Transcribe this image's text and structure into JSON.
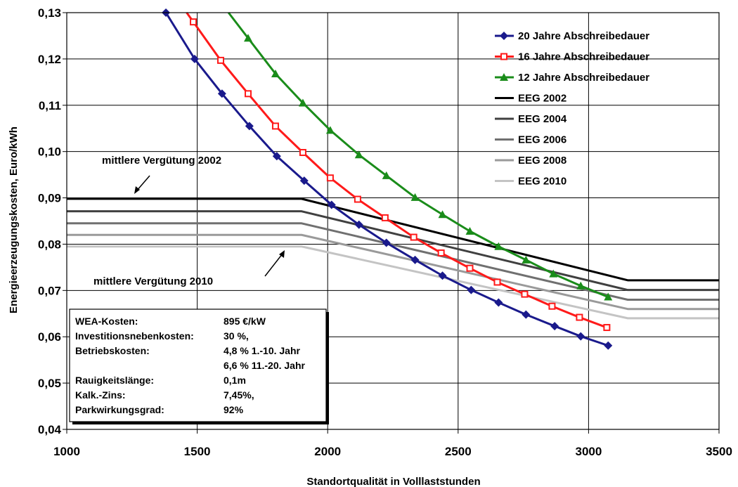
{
  "chart_data": {
    "type": "line",
    "xlabel": "Standortqualität in Volllaststunden",
    "ylabel": "Energieerzeugungskosten, Euro/kWh",
    "xlim": [
      1000,
      3500
    ],
    "ylim": [
      0.04,
      0.13
    ],
    "x_ticks": [
      "1000",
      "1500",
      "2000",
      "2500",
      "3000",
      "3500"
    ],
    "y_ticks": [
      "0,04",
      "0,05",
      "0,06",
      "0,07",
      "0,08",
      "0,09",
      "0,10",
      "0,11",
      "0,12",
      "0,13"
    ],
    "grid": true,
    "legend_position": "top-right",
    "series": [
      {
        "name": "20 Jahre Abschreibedauer",
        "color": "#1a1a8c",
        "marker": "diamond",
        "x": [
          1380,
          1490,
          1595,
          1700,
          1805,
          1910,
          2015,
          2120,
          2225,
          2335,
          2440,
          2550,
          2655,
          2760,
          2870,
          2970,
          3075
        ],
        "y": [
          0.13,
          0.12,
          0.1125,
          0.1055,
          0.099,
          0.0937,
          0.0885,
          0.0842,
          0.0803,
          0.0766,
          0.0732,
          0.0701,
          0.0674,
          0.0648,
          0.0623,
          0.0601,
          0.0581
        ]
      },
      {
        "name": "16 Jahre Abschreibedauer",
        "color": "#ff1a1a",
        "marker": "square",
        "x": [
          1485,
          1590,
          1695,
          1800,
          1905,
          2010,
          2115,
          2220,
          2330,
          2435,
          2545,
          2650,
          2755,
          2860,
          2965,
          3070
        ],
        "y": [
          0.128,
          0.1197,
          0.1125,
          0.1055,
          0.0998,
          0.0943,
          0.0897,
          0.0857,
          0.0815,
          0.0781,
          0.0748,
          0.0718,
          0.0692,
          0.0666,
          0.0642,
          0.062
        ]
      },
      {
        "name": "12 Jahre Abschreibedauer",
        "color": "#1a8c1a",
        "marker": "triangle",
        "x": [
          1695,
          1800,
          1905,
          2010,
          2120,
          2225,
          2335,
          2440,
          2545,
          2655,
          2760,
          2865,
          2970,
          3075
        ],
        "y": [
          0.1245,
          0.1168,
          0.1105,
          0.1046,
          0.0993,
          0.0948,
          0.0901,
          0.0864,
          0.0828,
          0.0795,
          0.0766,
          0.0736,
          0.071,
          0.0686
        ]
      },
      {
        "name": "EEG 2002",
        "color": "#000000",
        "marker": "none",
        "x": [
          1000,
          1900,
          3150,
          3500
        ],
        "y": [
          0.0898,
          0.0898,
          0.0722,
          0.0722
        ]
      },
      {
        "name": "EEG 2004",
        "color": "#404040",
        "marker": "none",
        "x": [
          1000,
          1900,
          3150,
          3500
        ],
        "y": [
          0.0871,
          0.0871,
          0.0701,
          0.0701
        ]
      },
      {
        "name": "EEG 2006",
        "color": "#707070",
        "marker": "none",
        "x": [
          1000,
          1900,
          3150,
          3500
        ],
        "y": [
          0.0845,
          0.0845,
          0.068,
          0.068
        ]
      },
      {
        "name": "EEG 2008",
        "color": "#9a9a9a",
        "marker": "none",
        "x": [
          1000,
          1900,
          3150,
          3500
        ],
        "y": [
          0.082,
          0.082,
          0.066,
          0.066
        ]
      },
      {
        "name": "EEG 2010",
        "color": "#c4c4c4",
        "marker": "none",
        "x": [
          1000,
          1900,
          3150,
          3500
        ],
        "y": [
          0.0795,
          0.0795,
          0.064,
          0.064
        ]
      }
    ],
    "annotations": [
      {
        "text": "mittlere Vergütung 2002"
      },
      {
        "text": "mittlere Vergütung 2010"
      }
    ],
    "infobox": {
      "rows": [
        {
          "label": "WEA-Kosten:",
          "value": "895 €/kW"
        },
        {
          "label": "Investitionsnebenkosten:",
          "value": "30 %,"
        },
        {
          "label": "Betriebskosten:",
          "value": "4,8 %  1.-10.  Jahr"
        },
        {
          "label": "",
          "value": "6,6 % 11.-20. Jahr"
        },
        {
          "label": "Rauigkeitslänge:",
          "value": "0,1m"
        },
        {
          "label": "Kalk.-Zins:",
          "value": "7,45%,"
        },
        {
          "label": "Parkwirkungsgrad:",
          "value": "92%"
        }
      ]
    }
  }
}
